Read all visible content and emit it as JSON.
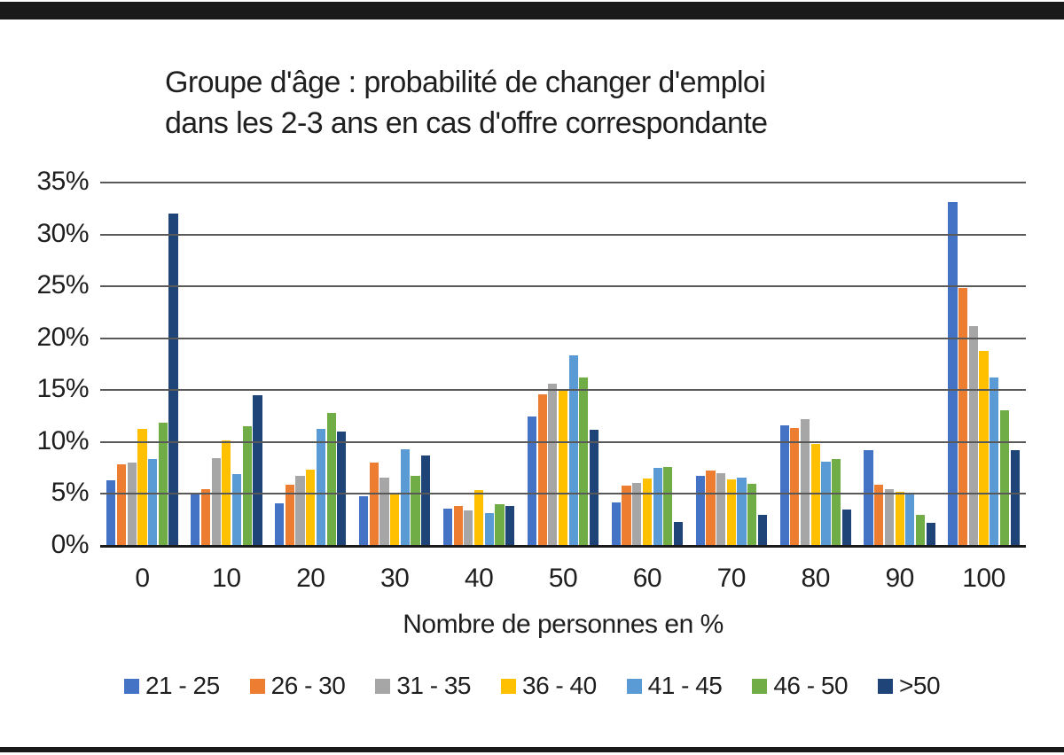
{
  "page": {
    "background": "#ffffff",
    "top_bar_color": "#1a1a1a",
    "bottom_bar_color": "#1a1a1a",
    "text_color": "#1f1f1f"
  },
  "chart_data": {
    "type": "bar",
    "title_lines": [
      "Groupe d'âge : probabilité de changer d'emploi",
      "dans les 2-3 ans en cas d'offre correspondante"
    ],
    "xlabel": "Nombre de personnes en %",
    "ylabel": "",
    "ylim": [
      0,
      35
    ],
    "ytick_step": 5,
    "ytick_suffix": "%",
    "grid": "horizontal-on-top",
    "gridline_color": "#595959",
    "baseline_color": "#1a1a1a",
    "legend_position": "bottom",
    "categories": [
      "0",
      "10",
      "20",
      "30",
      "40",
      "50",
      "60",
      "70",
      "80",
      "90",
      "100"
    ],
    "series": [
      {
        "name": "21 - 25",
        "color": "#4472C4",
        "values": [
          6.2,
          4.9,
          4.0,
          4.7,
          3.5,
          12.4,
          4.1,
          6.7,
          11.5,
          9.1,
          33.0
        ]
      },
      {
        "name": "26 - 30",
        "color": "#ED7D31",
        "values": [
          7.8,
          5.4,
          5.8,
          7.9,
          3.8,
          14.5,
          5.7,
          7.2,
          11.3,
          5.8,
          24.8
        ]
      },
      {
        "name": "31 - 35",
        "color": "#A6A6A6",
        "values": [
          7.9,
          8.4,
          6.7,
          6.5,
          3.3,
          15.5,
          6.0,
          6.9,
          12.1,
          5.4,
          21.1
        ]
      },
      {
        "name": "36 - 40",
        "color": "#FFC000",
        "values": [
          11.2,
          10.1,
          7.3,
          4.9,
          5.3,
          15.0,
          6.4,
          6.3,
          9.7,
          5.1,
          18.7
        ]
      },
      {
        "name": "41 - 45",
        "color": "#5B9BD5",
        "values": [
          8.3,
          6.8,
          11.2,
          9.2,
          3.1,
          18.3,
          7.4,
          6.5,
          8.0,
          5.0,
          16.1
        ]
      },
      {
        "name": "46 - 50",
        "color": "#70AD47",
        "values": [
          11.8,
          11.4,
          12.7,
          6.7,
          3.9,
          16.1,
          7.5,
          5.9,
          8.3,
          2.9,
          13.0
        ]
      },
      {
        "name": ">50",
        "color": "#1F4477",
        "values": [
          31.9,
          14.4,
          10.9,
          8.6,
          3.8,
          11.1,
          2.2,
          2.9,
          3.4,
          2.1,
          9.1
        ]
      }
    ]
  }
}
